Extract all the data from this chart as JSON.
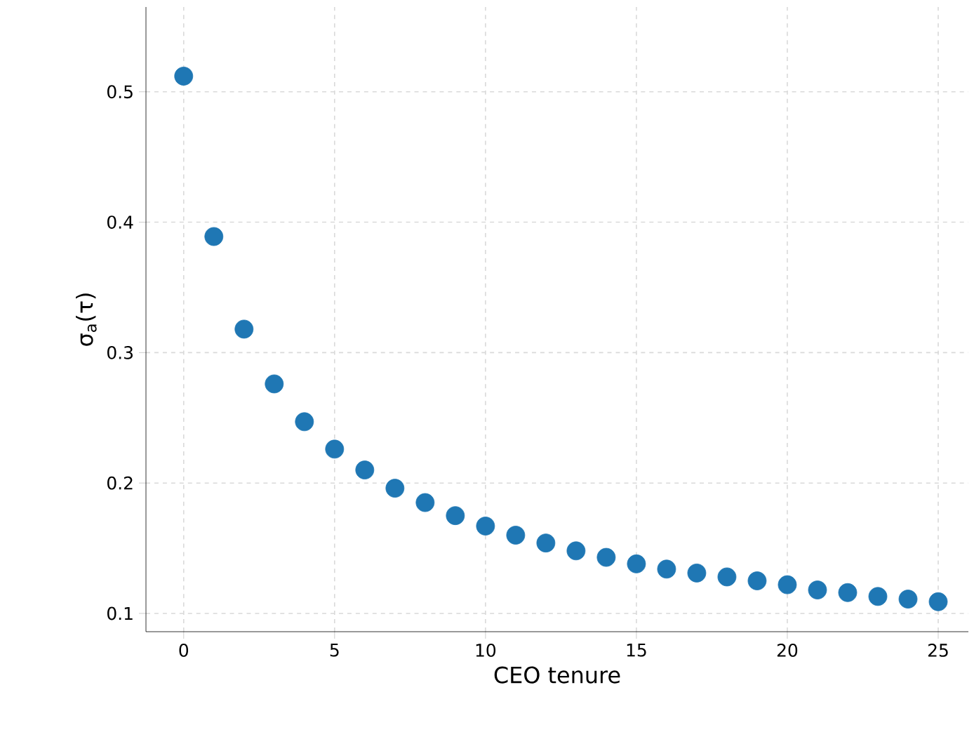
{
  "chart_data": {
    "type": "scatter",
    "xlabel": "CEO tenure",
    "ylabel": "σ$_{a}$(τ)",
    "x": [
      0,
      1,
      2,
      3,
      4,
      5,
      6,
      7,
      8,
      9,
      10,
      11,
      12,
      13,
      14,
      15,
      16,
      17,
      18,
      19,
      20,
      21,
      22,
      23,
      24,
      25
    ],
    "values": [
      0.512,
      0.389,
      0.318,
      0.276,
      0.247,
      0.226,
      0.21,
      0.196,
      0.185,
      0.175,
      0.167,
      0.16,
      0.154,
      0.148,
      0.143,
      0.138,
      0.134,
      0.131,
      0.128,
      0.125,
      0.122,
      0.118,
      0.116,
      0.113,
      0.111,
      0.109
    ],
    "color": "#1f77b4",
    "marker": "circle",
    "grid": true,
    "xlim": [
      -1.25,
      26
    ],
    "ylim": [
      0.086,
      0.565
    ],
    "xticks": [
      0,
      5,
      10,
      15,
      20,
      25
    ],
    "yticks": [
      0.1,
      0.2,
      0.3,
      0.4,
      0.5
    ]
  }
}
